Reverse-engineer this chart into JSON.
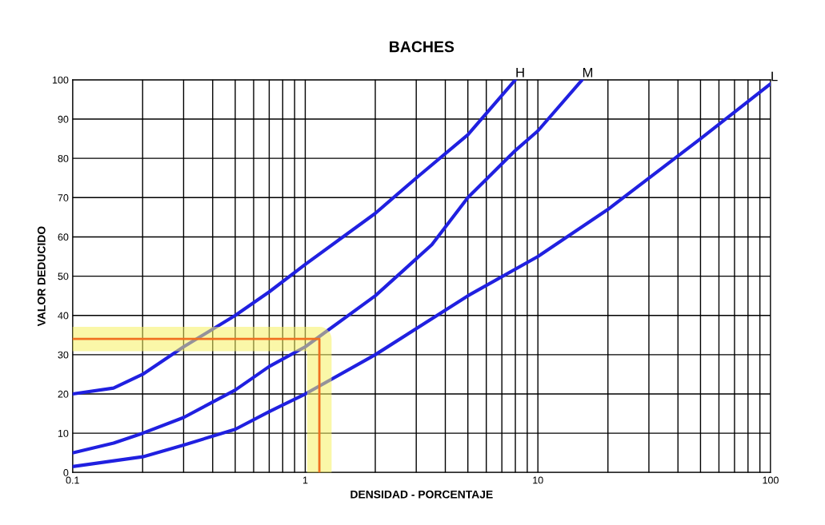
{
  "chart_data": {
    "type": "line",
    "title": "BACHES",
    "xlabel": "DENSIDAD - PORCENTAJE",
    "ylabel": "VALOR DEDUCIDO",
    "log": "x",
    "xlim": [
      0.1,
      100
    ],
    "ylim": [
      0,
      100
    ],
    "xticks": [
      0.1,
      {
        "value": 0.2,
        "label": null
      },
      {
        "value": 0.3,
        "label": null
      },
      {
        "value": 0.4,
        "label": null
      },
      {
        "value": 0.5,
        "label": null
      },
      {
        "value": 0.6,
        "label": null
      },
      {
        "value": 0.7,
        "label": null
      },
      {
        "value": 0.8,
        "label": null
      },
      {
        "value": 0.9,
        "label": null
      },
      1,
      {
        "value": 2,
        "label": null
      },
      {
        "value": 3,
        "label": null
      },
      {
        "value": 4,
        "label": null
      },
      {
        "value": 5,
        "label": null
      },
      {
        "value": 6,
        "label": null
      },
      {
        "value": 7,
        "label": null
      },
      {
        "value": 8,
        "label": null
      },
      {
        "value": 9,
        "label": null
      },
      10,
      {
        "value": 20,
        "label": null
      },
      {
        "value": 30,
        "label": null
      },
      {
        "value": 40,
        "label": null
      },
      {
        "value": 50,
        "label": null
      },
      {
        "value": 60,
        "label": null
      },
      {
        "value": 70,
        "label": null
      },
      {
        "value": 80,
        "label": null
      },
      {
        "value": 90,
        "label": null
      },
      100
    ],
    "yticks": [
      0,
      10,
      20,
      30,
      40,
      50,
      60,
      70,
      80,
      90,
      100
    ],
    "grid": true,
    "marker": "none",
    "line_style": "solid",
    "series": [
      {
        "name": "H",
        "color": "#2020e0",
        "x": [
          0.1,
          0.15,
          0.2,
          0.3,
          0.5,
          0.7,
          1,
          2,
          3,
          5,
          8
        ],
        "values": [
          20,
          21.5,
          25,
          32,
          40,
          46,
          53,
          66,
          75,
          86,
          100
        ]
      },
      {
        "name": "M",
        "color": "#2020e0",
        "x": [
          0.1,
          0.15,
          0.2,
          0.3,
          0.5,
          0.7,
          1,
          2,
          3.5,
          5,
          8,
          10,
          15.5
        ],
        "values": [
          5,
          7.5,
          10,
          14,
          21,
          27,
          32,
          45,
          58,
          70,
          82,
          87,
          100
        ]
      },
      {
        "name": "L",
        "color": "#2020e0",
        "x": [
          0.1,
          0.2,
          0.3,
          0.5,
          0.7,
          1,
          2,
          5,
          10,
          20,
          50,
          100
        ],
        "values": [
          1.5,
          4,
          7,
          11,
          15.5,
          20,
          30,
          45,
          55,
          67,
          85,
          99
        ]
      },
      {
        "color": "#f07020",
        "x": [
          0.1,
          1.15,
          1.15
        ],
        "values": [
          34,
          34,
          0
        ]
      }
    ]
  }
}
